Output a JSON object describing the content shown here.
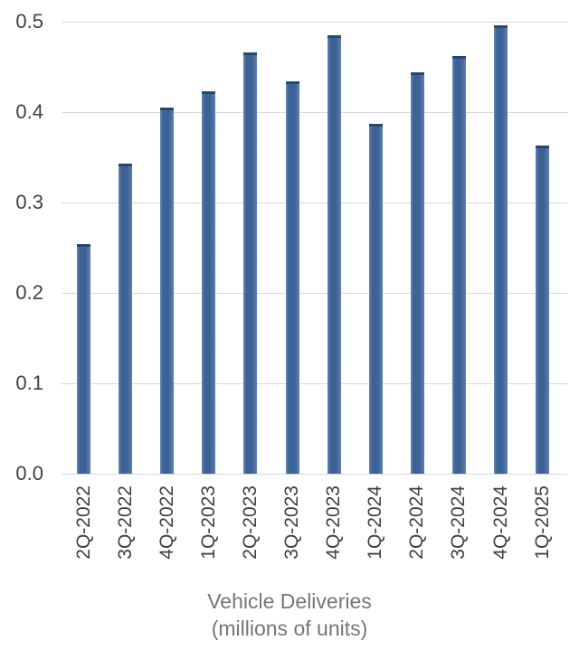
{
  "chart_data": {
    "type": "bar",
    "categories": [
      "2Q-2022",
      "3Q-2022",
      "4Q-2022",
      "1Q-2023",
      "2Q-2023",
      "3Q-2023",
      "4Q-2023",
      "1Q-2024",
      "2Q-2024",
      "3Q-2024",
      "4Q-2024",
      "1Q-2025"
    ],
    "values": [
      0.254,
      0.343,
      0.405,
      0.423,
      0.466,
      0.434,
      0.485,
      0.387,
      0.444,
      0.462,
      0.496,
      0.363
    ],
    "title": "Vehicle Deliveries",
    "subtitle": "(millions of units)",
    "xlabel": "",
    "ylabel": "",
    "ylim": [
      0,
      0.5
    ],
    "y_ticks": [
      "0.0",
      "0.1",
      "0.2",
      "0.3",
      "0.4",
      "0.5"
    ],
    "grid": true,
    "legend": false,
    "bar_color": "#3d6295",
    "bar_cap_color": "#27476f",
    "gridline_color": "#d9d9d9",
    "tick_label_color": "#404040",
    "title_color": "#767676"
  }
}
